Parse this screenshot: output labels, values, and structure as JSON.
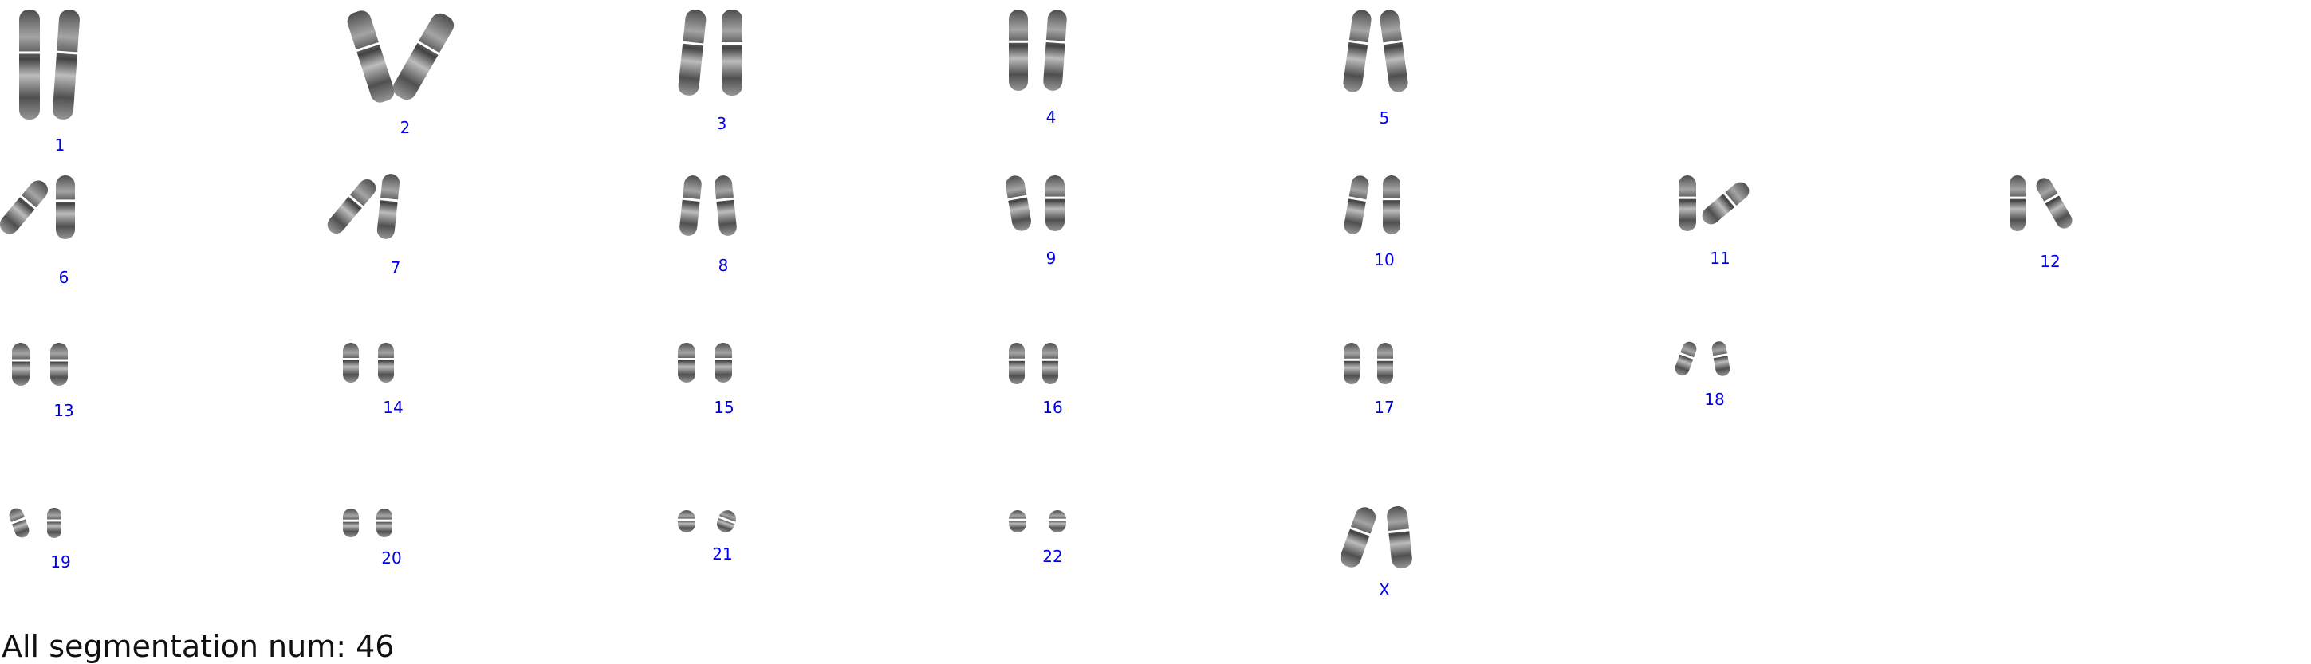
{
  "colors": {
    "label": "#0000ee",
    "chromosome_dark": "#2a2a2a",
    "chromosome_light": "#c8c8c8",
    "background": "#ffffff",
    "footer_text": "#111111"
  },
  "chromosomes": [
    {
      "label": "1"
    },
    {
      "label": "2"
    },
    {
      "label": "3"
    },
    {
      "label": "4"
    },
    {
      "label": "5"
    },
    {
      "label": "6"
    },
    {
      "label": "7"
    },
    {
      "label": "8"
    },
    {
      "label": "9"
    },
    {
      "label": "10"
    },
    {
      "label": "11"
    },
    {
      "label": "12"
    },
    {
      "label": "13"
    },
    {
      "label": "14"
    },
    {
      "label": "15"
    },
    {
      "label": "16"
    },
    {
      "label": "17"
    },
    {
      "label": "18"
    },
    {
      "label": "19"
    },
    {
      "label": "20"
    },
    {
      "label": "21"
    },
    {
      "label": "22"
    },
    {
      "label": "X"
    }
  ],
  "footer": {
    "summary": "All segmentation num: 46"
  }
}
